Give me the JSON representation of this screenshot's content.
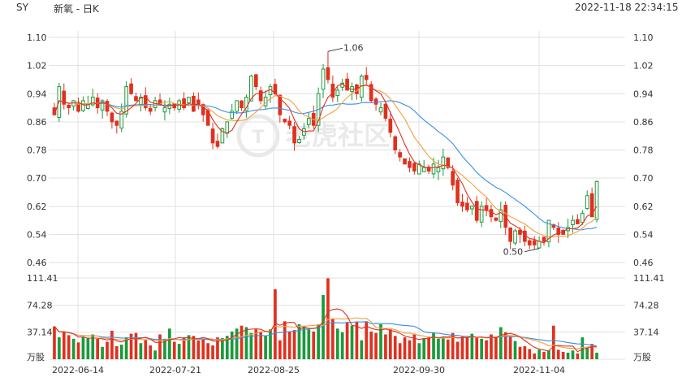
{
  "header": {
    "symbol": "SY",
    "name": "新氧 - 日K",
    "datetime": "2022-11-18 22:34:15"
  },
  "watermark": "老虎社区",
  "colors": {
    "up": "#1a9a3a",
    "down": "#e0301e",
    "ma5": "#e0301e",
    "ma10": "#f0a040",
    "ma20": "#3a8ee6",
    "grid": "#e2e2e2"
  },
  "chart_data": [
    {
      "type": "candlestick",
      "title": "SY 新氧 - 日K",
      "ylim": [
        0.46,
        1.1
      ],
      "y_ticks": [
        "1.10",
        "1.02",
        "0.94",
        "0.86",
        "0.78",
        "0.70",
        "0.62",
        "0.54",
        "0.46"
      ],
      "x_ticks": [
        "2022-06-14",
        "2022-07-21",
        "2022-08-25",
        "2022-09-30",
        "2022-11-04"
      ],
      "annotations": [
        {
          "text": "1.06",
          "value": 1.06
        },
        {
          "text": "0.50",
          "value": 0.5
        }
      ],
      "closes": [
        0.88,
        0.96,
        0.91,
        0.9,
        0.92,
        0.89,
        0.92,
        0.91,
        0.93,
        0.9,
        0.92,
        0.89,
        0.86,
        0.85,
        0.89,
        0.96,
        0.94,
        0.92,
        0.93,
        0.9,
        0.89,
        0.92,
        0.91,
        0.9,
        0.91,
        0.9,
        0.92,
        0.9,
        0.93,
        0.89,
        0.91,
        0.88,
        0.85,
        0.8,
        0.79,
        0.84,
        0.86,
        0.89,
        0.92,
        0.9,
        0.93,
        0.99,
        0.96,
        0.92,
        0.93,
        0.96,
        0.94,
        0.88,
        0.86,
        0.85,
        0.8,
        0.81,
        0.84,
        0.87,
        0.85,
        0.94,
        1.01,
        0.98,
        0.93,
        0.95,
        0.97,
        0.95,
        0.96,
        0.94,
        0.99,
        0.98,
        0.92,
        0.91,
        0.9,
        0.87,
        0.83,
        0.78,
        0.76,
        0.74,
        0.73,
        0.72,
        0.74,
        0.73,
        0.72,
        0.74,
        0.73,
        0.76,
        0.73,
        0.68,
        0.63,
        0.62,
        0.61,
        0.62,
        0.58,
        0.62,
        0.61,
        0.59,
        0.58,
        0.61,
        0.56,
        0.52,
        0.55,
        0.54,
        0.52,
        0.51,
        0.51,
        0.52,
        0.52,
        0.58,
        0.56,
        0.54,
        0.54,
        0.56,
        0.58,
        0.57,
        0.6,
        0.65,
        0.59,
        0.69
      ],
      "volume": {
        "ylim": [
          0,
          111.41
        ],
        "y_ticks": [
          "111.41",
          "74.28",
          "37.14",
          "万股"
        ],
        "unit": "万股",
        "values": [
          45,
          30,
          38,
          33,
          28,
          23,
          31,
          29,
          34,
          28,
          17,
          24,
          39,
          18,
          20,
          30,
          35,
          36,
          22,
          27,
          19,
          12,
          34,
          28,
          42,
          24,
          21,
          30,
          33,
          32,
          26,
          27,
          22,
          19,
          30,
          29,
          32,
          38,
          42,
          46,
          44,
          36,
          41,
          38,
          32,
          41,
          96,
          26,
          52,
          38,
          40,
          48,
          44,
          41,
          38,
          48,
          88,
          111,
          56,
          42,
          37,
          51,
          46,
          51,
          26,
          52,
          38,
          36,
          48,
          34,
          41,
          32,
          22,
          30,
          26,
          35,
          22,
          29,
          31,
          36,
          28,
          30,
          27,
          36,
          24,
          31,
          30,
          35,
          29,
          28,
          26,
          34,
          31,
          44,
          37,
          31,
          25,
          17,
          18,
          14,
          8,
          13,
          10,
          12,
          46,
          13,
          10,
          9,
          12,
          8,
          30,
          16,
          21,
          9
        ]
      }
    }
  ]
}
